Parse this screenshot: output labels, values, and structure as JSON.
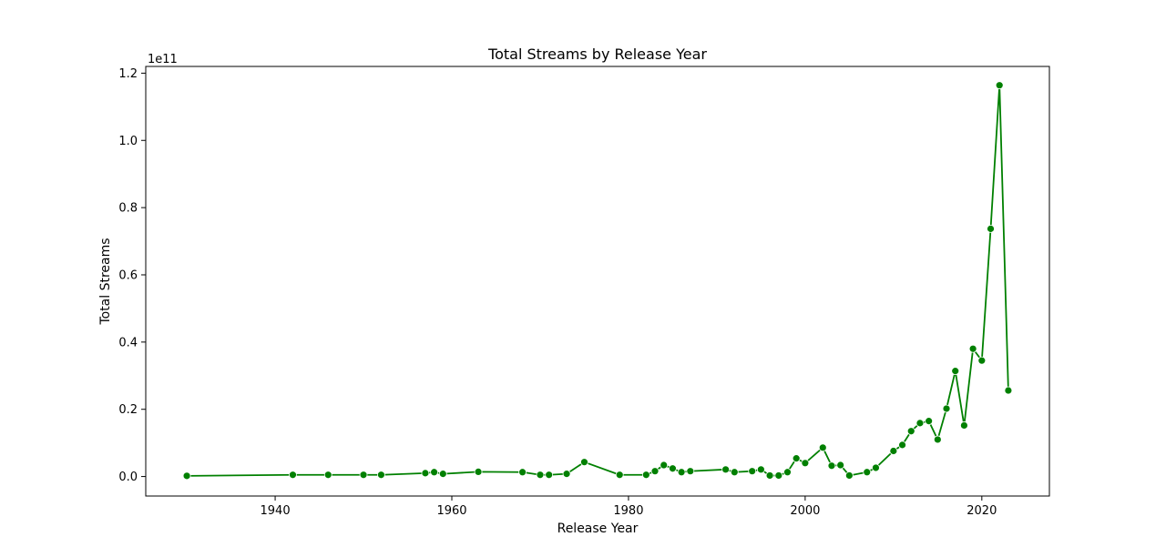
{
  "chart_data": {
    "type": "line",
    "title": "Total Streams by Release Year",
    "xlabel": "Release Year",
    "ylabel": "Total Streams",
    "y_offset_label": "1e11",
    "line_color": "#008000",
    "marker": "circle",
    "grid": false,
    "xlim": [
      1925.35,
      2027.65
    ],
    "ylim": [
      -0.058,
      1.22
    ],
    "x_ticks": [
      1940,
      1960,
      1980,
      2000,
      2020
    ],
    "y_ticks": [
      0.0,
      0.2,
      0.4,
      0.6,
      0.8,
      1.0,
      1.2
    ],
    "y_tick_labels": [
      "0.0",
      "0.2",
      "0.4",
      "0.6",
      "0.8",
      "1.0",
      "1.2"
    ],
    "series": [
      {
        "x": [
          1930,
          1942,
          1946,
          1950,
          1952,
          1957,
          1958,
          1959,
          1963,
          1968,
          1970,
          1971,
          1973,
          1975,
          1979,
          1982,
          1983,
          1984,
          1985,
          1986,
          1987,
          1991,
          1992,
          1994,
          1995,
          1996,
          1997,
          1998,
          1999,
          2000,
          2002,
          2003,
          2004,
          2005,
          2007,
          2008,
          2010,
          2011,
          2012,
          2013,
          2014,
          2015,
          2016,
          2017,
          2018,
          2019,
          2020,
          2021,
          2022,
          2023
        ],
        "y": [
          0.002,
          0.005,
          0.005,
          0.005,
          0.005,
          0.01,
          0.013,
          0.008,
          0.014,
          0.013,
          0.005,
          0.005,
          0.008,
          0.043,
          0.005,
          0.005,
          0.016,
          0.034,
          0.024,
          0.013,
          0.016,
          0.021,
          0.013,
          0.016,
          0.021,
          0.003,
          0.003,
          0.013,
          0.054,
          0.04,
          0.086,
          0.032,
          0.034,
          0.003,
          0.013,
          0.026,
          0.076,
          0.094,
          0.135,
          0.159,
          0.165,
          0.11,
          0.202,
          0.314,
          0.152,
          0.38,
          0.345,
          0.737,
          1.164,
          0.256
        ]
      }
    ]
  }
}
